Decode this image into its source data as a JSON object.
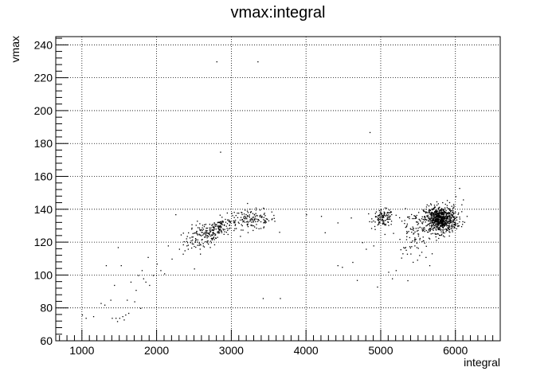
{
  "chart_data": {
    "type": "scatter",
    "title": "vmax:integral",
    "xlabel": "integral",
    "ylabel": "vmax",
    "xlim": [
      650,
      6600
    ],
    "ylim": [
      60,
      245
    ],
    "grid": true,
    "marker_color": "#000000",
    "x_ticks": [
      1000,
      2000,
      3000,
      4000,
      5000,
      6000
    ],
    "y_ticks": [
      60,
      80,
      100,
      120,
      140,
      160,
      180,
      200,
      220,
      240
    ],
    "x_tick_labels": [
      "1000",
      "2000",
      "3000",
      "4000",
      "5000",
      "6000"
    ],
    "y_tick_labels": [
      "60",
      "80",
      "100",
      "120",
      "140",
      "160",
      "180",
      "200",
      "220",
      "240"
    ],
    "points": [
      [
        1000,
        76
      ],
      [
        1050,
        74
      ],
      [
        1150,
        75
      ],
      [
        1250,
        83
      ],
      [
        1300,
        82
      ],
      [
        1320,
        106
      ],
      [
        1380,
        85
      ],
      [
        1400,
        74
      ],
      [
        1430,
        94
      ],
      [
        1450,
        74
      ],
      [
        1470,
        72
      ],
      [
        1480,
        117
      ],
      [
        1500,
        74
      ],
      [
        1520,
        106
      ],
      [
        1540,
        75
      ],
      [
        1560,
        73
      ],
      [
        1580,
        76
      ],
      [
        1600,
        85
      ],
      [
        1620,
        77
      ],
      [
        1650,
        96
      ],
      [
        1700,
        84
      ],
      [
        1720,
        91
      ],
      [
        1750,
        100
      ],
      [
        1780,
        80
      ],
      [
        1800,
        103
      ],
      [
        1820,
        98
      ],
      [
        1850,
        96
      ],
      [
        1880,
        111
      ],
      [
        1900,
        94
      ],
      [
        1950,
        100
      ],
      [
        2000,
        107
      ],
      [
        2050,
        103
      ],
      [
        2100,
        101
      ],
      [
        2150,
        118
      ],
      [
        2200,
        110
      ],
      [
        2250,
        137
      ],
      [
        2300,
        116
      ],
      [
        2350,
        113
      ],
      [
        2400,
        118
      ],
      [
        2450,
        120
      ],
      [
        2500,
        104
      ],
      [
        2800,
        230
      ],
      [
        2850,
        175
      ],
      [
        3350,
        230
      ],
      [
        3420,
        86
      ],
      [
        3650,
        86
      ],
      [
        4000,
        137
      ],
      [
        4200,
        136
      ],
      [
        4250,
        126
      ],
      [
        4420,
        132
      ],
      [
        4420,
        106
      ],
      [
        4480,
        105
      ],
      [
        4600,
        135
      ],
      [
        4620,
        108
      ],
      [
        4680,
        97
      ],
      [
        4750,
        120
      ],
      [
        4800,
        116
      ],
      [
        4850,
        187
      ],
      [
        4900,
        118
      ],
      [
        4920,
        128
      ],
      [
        4950,
        93
      ],
      [
        5050,
        125
      ],
      [
        5100,
        102
      ],
      [
        5150,
        98
      ],
      [
        5200,
        103
      ],
      [
        5250,
        122
      ],
      [
        5300,
        117
      ],
      [
        5350,
        113
      ],
      [
        5400,
        128
      ],
      [
        5450,
        118
      ],
      [
        5500,
        124
      ],
      [
        5600,
        111
      ],
      [
        5650,
        106
      ],
      [
        6000,
        148
      ],
      [
        6050,
        153
      ],
      [
        6080,
        143
      ],
      [
        6100,
        146
      ],
      [
        6150,
        136
      ]
    ],
    "clusters": [
      {
        "n": 140,
        "cx": 2620,
        "cy": 124,
        "sx": 130,
        "sy": 4
      },
      {
        "n": 110,
        "cx": 2850,
        "cy": 130,
        "sx": 110,
        "sy": 3
      },
      {
        "n": 140,
        "cx": 3280,
        "cy": 134,
        "sx": 160,
        "sy": 3
      },
      {
        "n": 110,
        "cx": 5030,
        "cy": 135,
        "sx": 70,
        "sy": 2.5
      },
      {
        "n": 90,
        "cx": 5420,
        "cy": 125,
        "sx": 110,
        "sy": 7
      },
      {
        "n": 750,
        "cx": 5790,
        "cy": 134,
        "sx": 110,
        "sy": 4
      }
    ]
  }
}
